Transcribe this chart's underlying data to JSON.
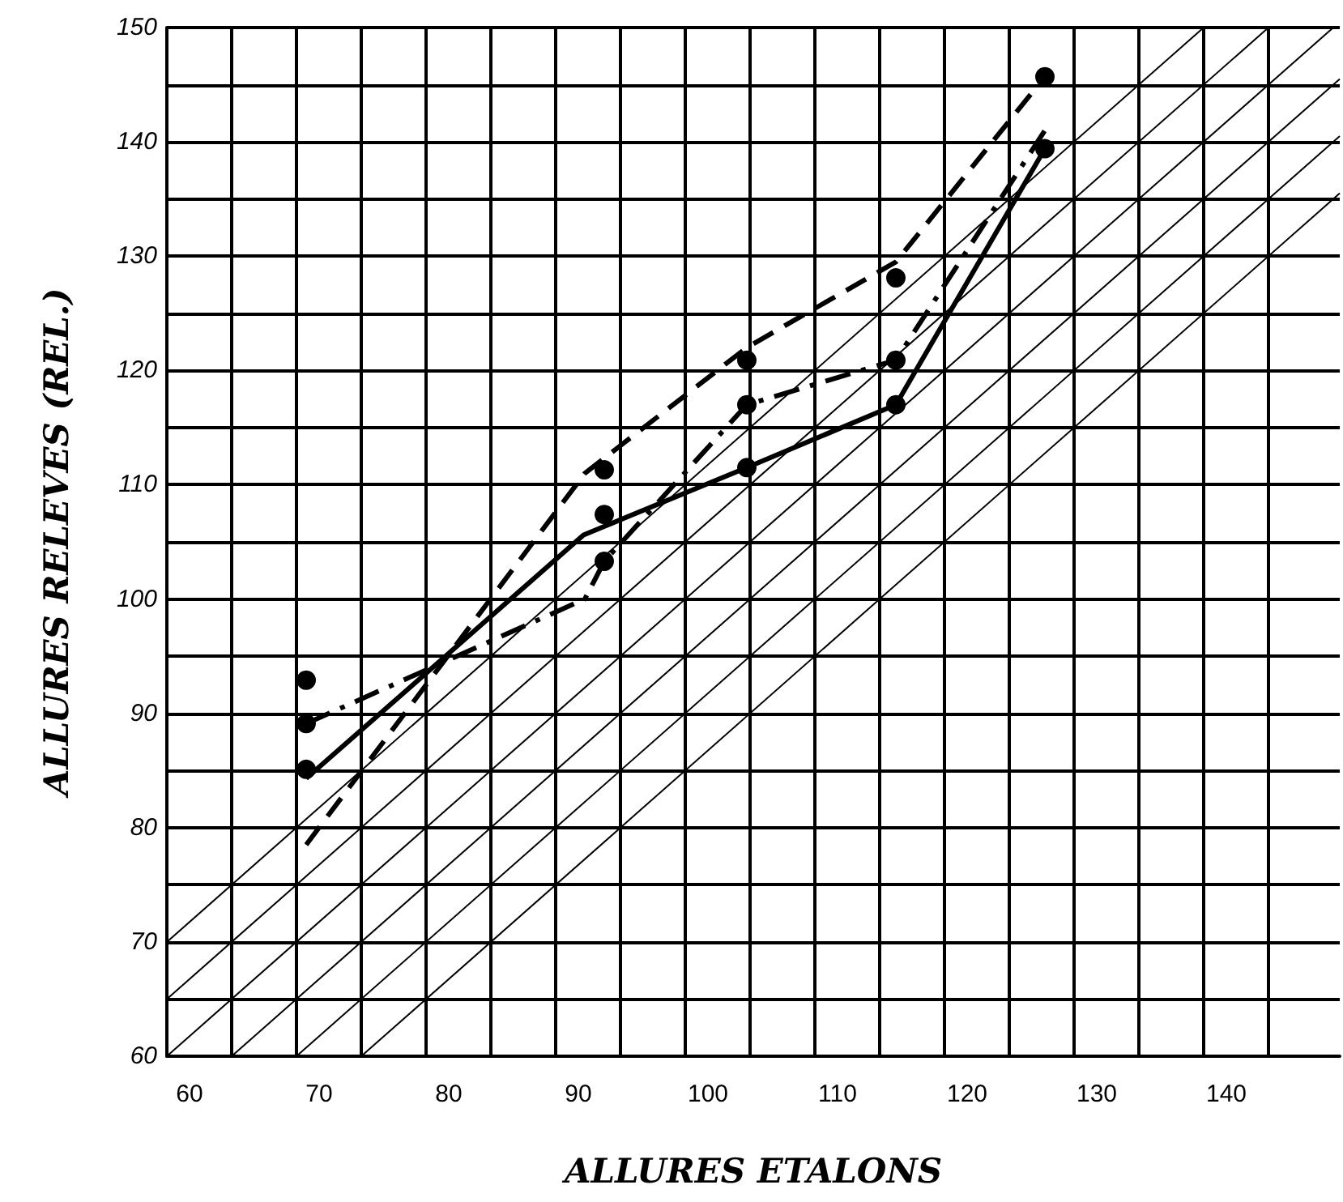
{
  "chart_data": {
    "type": "line",
    "xlabel": "ALLURES ETALONS",
    "ylabel": "ALLURES RELEVES (REL.)",
    "xlim": [
      58.25,
      148.75
    ],
    "ylim": [
      60,
      150
    ],
    "xticks": [
      60,
      70,
      80,
      90,
      100,
      110,
      120,
      130,
      140,
      {
        "value": 63.25,
        "label": null
      },
      {
        "value": 68.25,
        "label": null
      },
      {
        "value": 73.25,
        "label": null
      },
      {
        "value": 78.25,
        "label": null
      },
      {
        "value": 83.25,
        "label": null
      },
      {
        "value": 88.25,
        "label": null
      },
      {
        "value": 93.25,
        "label": null
      },
      {
        "value": 98.25,
        "label": null
      },
      {
        "value": 103.25,
        "label": null
      },
      {
        "value": 108.25,
        "label": null
      },
      {
        "value": 113.25,
        "label": null
      },
      {
        "value": 118.25,
        "label": null
      },
      {
        "value": 123.25,
        "label": null
      },
      {
        "value": 128.25,
        "label": null
      },
      {
        "value": 133.25,
        "label": null
      },
      {
        "value": 138.25,
        "label": null
      },
      {
        "value": 143.25,
        "label": null
      }
    ],
    "yticks": [
      60,
      70,
      80,
      90,
      100,
      110,
      120,
      130,
      140,
      150,
      {
        "value": 65,
        "label": null
      },
      {
        "value": 75,
        "label": null
      },
      {
        "value": 85,
        "label": null
      },
      {
        "value": 95,
        "label": null
      },
      {
        "value": 105,
        "label": null
      },
      {
        "value": 115,
        "label": null
      },
      {
        "value": 125,
        "label": null
      },
      {
        "value": 135,
        "label": null
      },
      {
        "value": 145,
        "label": null
      }
    ],
    "grid": true,
    "series": [
      {
        "color": "#000000",
        "x": [
          58.25,
          138.25
        ],
        "values": [
          70,
          150
        ]
      },
      {
        "color": "#000000",
        "x": [
          58.25,
          143.25
        ],
        "values": [
          65,
          150
        ]
      },
      {
        "color": "#000000",
        "x": [
          58.25,
          148.25
        ],
        "values": [
          60,
          150
        ]
      },
      {
        "color": "#000000",
        "x": [
          63.25,
          148.75
        ],
        "values": [
          60,
          145.5
        ]
      },
      {
        "color": "#000000",
        "x": [
          68.25,
          148.75
        ],
        "values": [
          60,
          140.5
        ]
      },
      {
        "color": "#000000",
        "x": [
          73.25,
          148.75
        ],
        "values": [
          60,
          135.5
        ]
      },
      {
        "color": "#000000",
        "line_style": "solid",
        "marker": "none",
        "x": [
          69,
          90.4,
          103,
          114.5,
          126
        ],
        "values": [
          84.3,
          105.6,
          111.5,
          117,
          139.4
        ]
      },
      {
        "color": "#000000",
        "line_style": "dashed",
        "marker": "none",
        "x": [
          69,
          90.5,
          103,
          114.5,
          126
        ],
        "values": [
          78.5,
          111,
          122,
          129.5,
          145.7
        ]
      },
      {
        "color": "#000000",
        "line_style": "dashdot",
        "marker": "none",
        "x": [
          69,
          83,
          90.5,
          92,
          103,
          114.5,
          126
        ],
        "values": [
          89.1,
          96.2,
          100,
          103.3,
          117,
          120.9,
          141
        ]
      },
      {
        "type": "scatter",
        "color": "#000000",
        "marker": "circle",
        "x": [
          69,
          69,
          69,
          92,
          92,
          92,
          103,
          103,
          103,
          114.5,
          114.5,
          114.5,
          126,
          126
        ],
        "values": [
          92.9,
          89.1,
          85.1,
          111.3,
          107.4,
          103.3,
          120.9,
          117,
          111.5,
          128.1,
          120.9,
          117,
          145.7,
          139.4
        ]
      }
    ]
  }
}
